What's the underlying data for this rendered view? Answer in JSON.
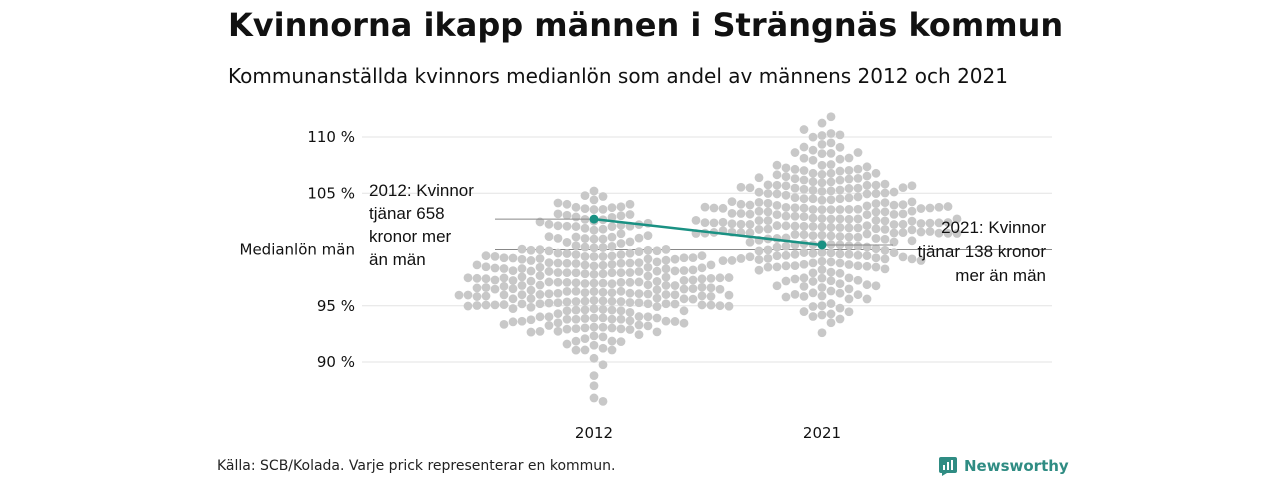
{
  "title": "Kvinnorna ikapp männen i Strängnäs kommun",
  "subtitle": "Kommunanställda kvinnors medianlön som andel av männens 2012 och 2021",
  "source": "Källa: SCB/Kolada. Varje prick representerar en kommun.",
  "brand": {
    "name": "Newsworthy",
    "icon": "newsworthy-logo-icon",
    "color": "#2f8c83"
  },
  "chart_data": {
    "type": "scatter",
    "subtype": "beeswarm",
    "categories": [
      "2012",
      "2021"
    ],
    "ylim": [
      85.5,
      112
    ],
    "y_ticks": [
      {
        "value": 110,
        "label": "110 %"
      },
      {
        "value": 105,
        "label": "105 %"
      },
      {
        "value": 100,
        "label": "Medianlön män"
      },
      {
        "value": 95,
        "label": "95 %"
      },
      {
        "value": 90,
        "label": "90 %"
      }
    ],
    "grid": true,
    "point_color": "#c8c8c8",
    "highlight_color": "#1a9183",
    "distributions": [
      {
        "category": "2012",
        "min": 86.5,
        "max": 105.2,
        "center": 97,
        "n": 290
      },
      {
        "category": "2021",
        "min": 92.6,
        "max": 111.8,
        "center": 102,
        "n": 290
      }
    ],
    "highlight": {
      "series": "Strängnäs",
      "values": [
        {
          "category": "2012",
          "y": 102.7
        },
        {
          "category": "2021",
          "y": 100.4
        }
      ]
    },
    "annotations": [
      {
        "category": "2012",
        "lines": [
          "2012: Kvinnor",
          "tjänar 658",
          "kronor mer",
          "än män"
        ]
      },
      {
        "category": "2021",
        "lines": [
          "2021: Kvinnor",
          "tjänar 138 kronor",
          "mer än män"
        ]
      }
    ]
  }
}
